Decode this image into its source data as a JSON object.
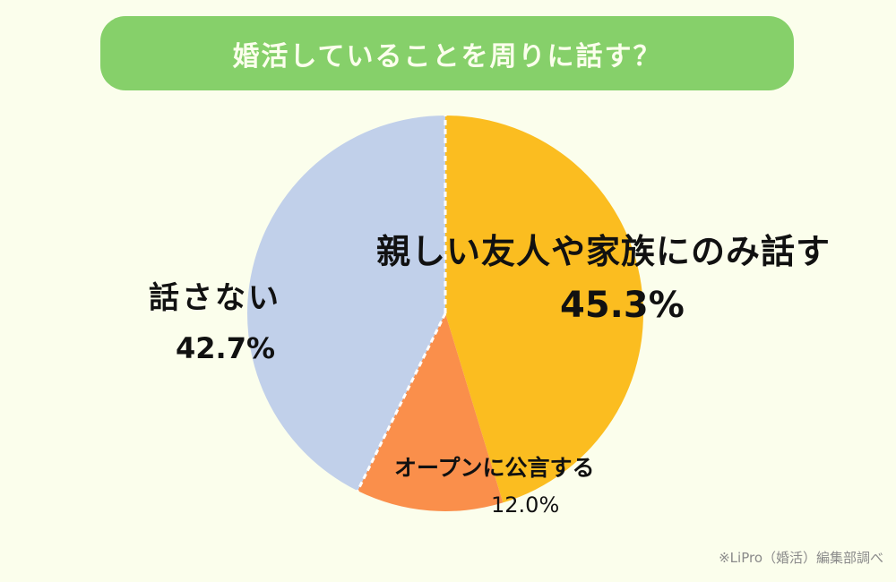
{
  "header": {
    "title": "婚活していることを周りに話す？"
  },
  "colors": {
    "background": "#fbfeec",
    "title_bar": "#86d06a",
    "slice_friends_family": "#fbbd20",
    "slice_open": "#fa8f4b",
    "slice_not_tell": "#c1d0ea"
  },
  "slices": [
    {
      "label": "親しい友人や家族にのみ話す",
      "value_text": "45.3%"
    },
    {
      "label": "オープンに公言する",
      "value_text": "12.0%"
    },
    {
      "label": "話さない",
      "value_text": "42.7%"
    }
  ],
  "source": "※LiPro（婚活）編集部調べ",
  "chart_data": {
    "type": "pie",
    "title": "婚活していることを周りに話す？",
    "categories": [
      "親しい友人や家族にのみ話す",
      "オープンに公言する",
      "話さない"
    ],
    "values": [
      45.3,
      12.0,
      42.7
    ],
    "unit": "%",
    "start_angle": "12 o'clock",
    "direction": "clockwise",
    "colors": [
      "#fbbd20",
      "#fa8f4b",
      "#c1d0ea"
    ],
    "legend": "none (inline labels)",
    "annotation": "※LiPro（婚活）編集部調べ"
  }
}
